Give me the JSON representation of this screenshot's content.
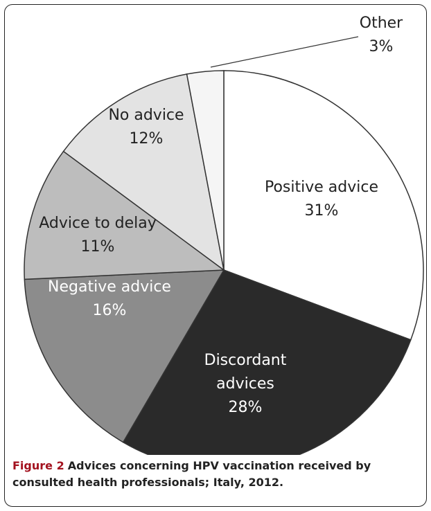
{
  "chart_data": {
    "type": "pie",
    "categories": [
      "Positive advice",
      "Discordant advices",
      "Negative advice",
      "Advice to delay",
      "No advice",
      "Other"
    ],
    "values": [
      31,
      28,
      16,
      11,
      12,
      3
    ],
    "value_labels": [
      "31%",
      "28%",
      "16%",
      "11%",
      "12%",
      "3%"
    ],
    "colors": [
      "#ffffff",
      "#2a2a2a",
      "#8c8c8c",
      "#bdbdbd",
      "#e3e3e3",
      "#f5f5f5"
    ],
    "label_colors": [
      "#222222",
      "#ffffff",
      "#ffffff",
      "#222222",
      "#222222",
      "#222222"
    ],
    "start": "12 o'clock",
    "direction": "clockwise",
    "legend": "none"
  },
  "caption": {
    "label": "Figure 2",
    "text": "Advices concerning HPV vaccination received by consulted health professionals; Italy, 2012."
  }
}
